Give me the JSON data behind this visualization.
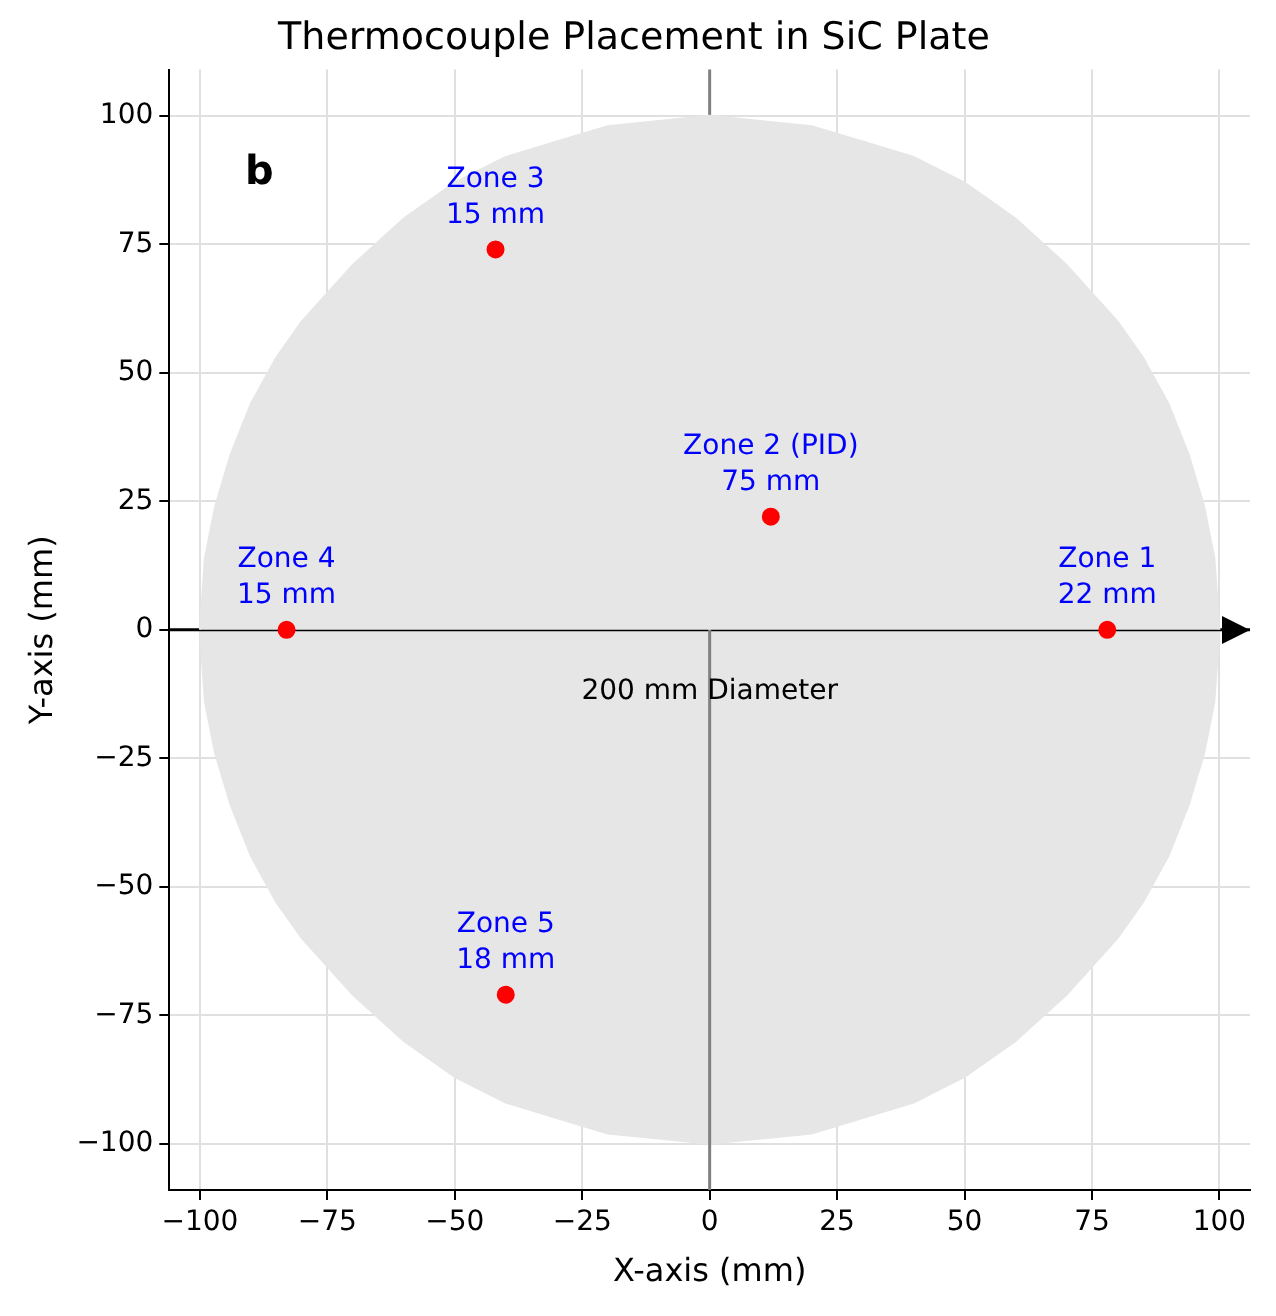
{
  "chart_data": {
    "type": "scatter",
    "title": "Thermocouple Placement in SiC Plate",
    "xlabel": "X-axis (mm)",
    "ylabel": "Y-axis (mm)",
    "series": [
      {
        "type": "area",
        "marker": "none",
        "color": "#e6e6e6",
        "x": [
          -100,
          -99,
          -97,
          -94,
          -90,
          -85,
          -80,
          -70,
          -60,
          -50,
          -40,
          -30,
          -20,
          -10,
          0,
          10,
          20,
          30,
          40,
          50,
          60,
          70,
          80,
          85,
          90,
          94,
          97,
          99,
          100
        ],
        "values": [
          0,
          14,
          24,
          34,
          44,
          53,
          60,
          71,
          80,
          87,
          92,
          95,
          98,
          99,
          100,
          99,
          98,
          95,
          92,
          87,
          80,
          71,
          60,
          53,
          44,
          34,
          24,
          14,
          0
        ]
      },
      {
        "type": "area",
        "marker": "none",
        "color": "#e6e6e6",
        "x": [
          -100,
          -99,
          -97,
          -94,
          -90,
          -85,
          -80,
          -70,
          -60,
          -50,
          -40,
          -30,
          -20,
          -10,
          0,
          10,
          20,
          30,
          40,
          50,
          60,
          70,
          80,
          85,
          90,
          94,
          97,
          99,
          100
        ],
        "values": [
          0,
          -14,
          -24,
          -34,
          -44,
          -53,
          -60,
          -71,
          -80,
          -87,
          -92,
          -95,
          -98,
          -99,
          -100,
          -99,
          -98,
          -95,
          -92,
          -87,
          -80,
          -71,
          -60,
          -53,
          -44,
          -34,
          -24,
          -14,
          0
        ]
      },
      {
        "color": "#ff0000",
        "marker": "circle",
        "x": [
          78,
          12,
          -42,
          -83,
          -40
        ],
        "values": [
          0,
          22,
          74,
          0,
          -71
        ]
      }
    ],
    "xlim": [
      -106,
      106
    ],
    "ylim": [
      -109,
      109
    ],
    "xticks": [
      -100,
      -75,
      -50,
      -25,
      0,
      25,
      50,
      75,
      100
    ],
    "yticks": [
      -100,
      -75,
      -50,
      -25,
      0,
      25,
      50,
      75,
      100
    ],
    "grid": true,
    "legend": false,
    "ref_lines": [
      {
        "axis": "y",
        "value": 0,
        "color": "#000000"
      },
      {
        "axis": "x",
        "value": 0,
        "color": "#808080"
      }
    ],
    "annotations": [
      {
        "text": "Zone 1\n22 mm",
        "x": 78,
        "y": 0
      },
      {
        "text": "Zone 2 (PID)\n75 mm",
        "x": 12,
        "y": 22
      },
      {
        "text": "Zone 3\n15 mm",
        "x": -42,
        "y": 74
      },
      {
        "text": "Zone 4\n15 mm",
        "x": -83,
        "y": 0
      },
      {
        "text": "Zone 5\n18 mm",
        "x": -40,
        "y": -71
      },
      "b",
      "200 mm Diameter"
    ]
  }
}
